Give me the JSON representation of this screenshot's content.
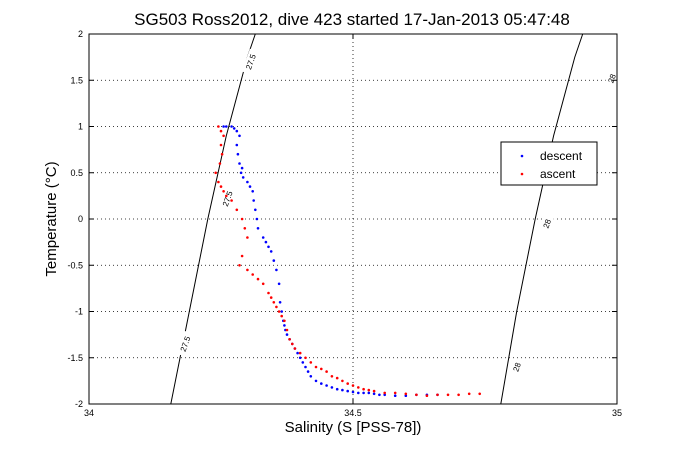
{
  "chart_data": {
    "type": "scatter",
    "title": "SG503 Ross2012, dive 423 started 17-Jan-2013 05:47:48",
    "xlabel": "Salinity (S [PSS-78])",
    "ylabel": "Temperature (°C)",
    "xlim": [
      34,
      35
    ],
    "ylim": [
      -2,
      2
    ],
    "xticks": [
      34,
      34.5,
      35
    ],
    "xtick_labels": [
      "34",
      "34.5",
      "35"
    ],
    "yticks": [
      -2,
      -1.5,
      -1,
      -0.5,
      0,
      0.5,
      1,
      1.5,
      2
    ],
    "ytick_labels": [
      "-2",
      "-1.5",
      "-1",
      "-0.5",
      "0",
      "0.5",
      "1",
      "1.5",
      "2"
    ],
    "grid": true,
    "legend_position": "right",
    "colors": {
      "descent": "#0000ff",
      "ascent": "#ff0000",
      "contour": "#000000"
    },
    "series": [
      {
        "name": "descent",
        "x": [
          34.255,
          34.26,
          34.27,
          34.275,
          34.28,
          34.285,
          34.28,
          34.282,
          34.285,
          34.29,
          34.288,
          34.292,
          34.3,
          34.305,
          34.31,
          34.312,
          34.315,
          34.318,
          34.32,
          34.33,
          34.335,
          34.34,
          34.345,
          34.35,
          34.355,
          34.36,
          34.362,
          34.365,
          34.368,
          34.37,
          34.372,
          34.375,
          34.38,
          34.385,
          34.39,
          34.395,
          34.4,
          34.405,
          34.41,
          34.415,
          34.42,
          34.43,
          34.44,
          34.45,
          34.46,
          34.47,
          34.48,
          34.49,
          34.5,
          34.51,
          34.52,
          34.53,
          34.54,
          34.55,
          34.56,
          34.58,
          34.6,
          34.62,
          34.64,
          34.66
        ],
        "y": [
          1.0,
          1.0,
          1.0,
          0.98,
          0.95,
          0.9,
          0.8,
          0.7,
          0.6,
          0.55,
          0.5,
          0.45,
          0.4,
          0.35,
          0.3,
          0.2,
          0.1,
          0.0,
          -0.1,
          -0.2,
          -0.25,
          -0.3,
          -0.35,
          -0.45,
          -0.55,
          -0.7,
          -0.9,
          -1.0,
          -1.1,
          -1.15,
          -1.2,
          -1.25,
          -1.3,
          -1.35,
          -1.4,
          -1.45,
          -1.5,
          -1.55,
          -1.6,
          -1.65,
          -1.7,
          -1.75,
          -1.78,
          -1.8,
          -1.82,
          -1.84,
          -1.85,
          -1.86,
          -1.87,
          -1.88,
          -1.88,
          -1.88,
          -1.89,
          -1.9,
          -1.9,
          -1.91,
          -1.91,
          -1.9,
          -1.9,
          -1.9
        ]
      },
      {
        "name": "ascent",
        "x": [
          34.245,
          34.25,
          34.255,
          34.25,
          34.252,
          34.248,
          34.24,
          34.245,
          34.25,
          34.255,
          34.26,
          34.27,
          34.28,
          34.29,
          34.295,
          34.3,
          34.29,
          34.285,
          34.3,
          34.31,
          34.32,
          34.33,
          34.34,
          34.345,
          34.35,
          34.355,
          34.36,
          34.365,
          34.37,
          34.375,
          34.38,
          34.385,
          34.39,
          34.4,
          34.41,
          34.42,
          34.43,
          34.44,
          34.45,
          34.46,
          34.47,
          34.48,
          34.49,
          34.5,
          34.51,
          34.52,
          34.53,
          34.54,
          34.56,
          34.58,
          34.6,
          34.62,
          34.64,
          34.66,
          34.68,
          34.7,
          34.72,
          34.74
        ],
        "y": [
          1.0,
          0.95,
          0.9,
          0.8,
          0.7,
          0.6,
          0.5,
          0.4,
          0.35,
          0.3,
          0.25,
          0.2,
          0.1,
          0.0,
          -0.1,
          -0.2,
          -0.4,
          -0.5,
          -0.55,
          -0.6,
          -0.65,
          -0.7,
          -0.8,
          -0.85,
          -0.9,
          -0.95,
          -1.0,
          -1.05,
          -1.1,
          -1.2,
          -1.3,
          -1.35,
          -1.4,
          -1.45,
          -1.5,
          -1.55,
          -1.6,
          -1.62,
          -1.65,
          -1.7,
          -1.72,
          -1.75,
          -1.78,
          -1.8,
          -1.82,
          -1.84,
          -1.85,
          -1.86,
          -1.88,
          -1.88,
          -1.89,
          -1.9,
          -1.91,
          -1.9,
          -1.9,
          -1.9,
          -1.89,
          -1.89
        ]
      }
    ],
    "contours": [
      {
        "label": "27.5",
        "points": [
          [
            34.155,
            -2
          ],
          [
            34.19,
            -1.0
          ],
          [
            34.225,
            0.0
          ],
          [
            34.26,
            0.9
          ],
          [
            34.3,
            1.75
          ],
          [
            34.315,
            2.0
          ]
        ]
      },
      {
        "label": "28",
        "points": [
          [
            34.78,
            -2
          ],
          [
            34.81,
            -1.0
          ],
          [
            34.845,
            0.0
          ],
          [
            34.88,
            0.9
          ],
          [
            34.92,
            1.75
          ],
          [
            34.935,
            2.0
          ]
        ]
      }
    ],
    "contour_labels": [
      {
        "text": "27.5",
        "x": 34.182,
        "y": -1.35
      },
      {
        "text": "27.5",
        "x": 34.262,
        "y": 0.22
      },
      {
        "text": "27.5",
        "x": 34.306,
        "y": 1.7
      },
      {
        "text": "28",
        "x": 34.81,
        "y": -1.6
      },
      {
        "text": "28",
        "x": 34.867,
        "y": -0.05
      },
      {
        "text": "28",
        "x": 34.99,
        "y": 1.52
      }
    ]
  }
}
